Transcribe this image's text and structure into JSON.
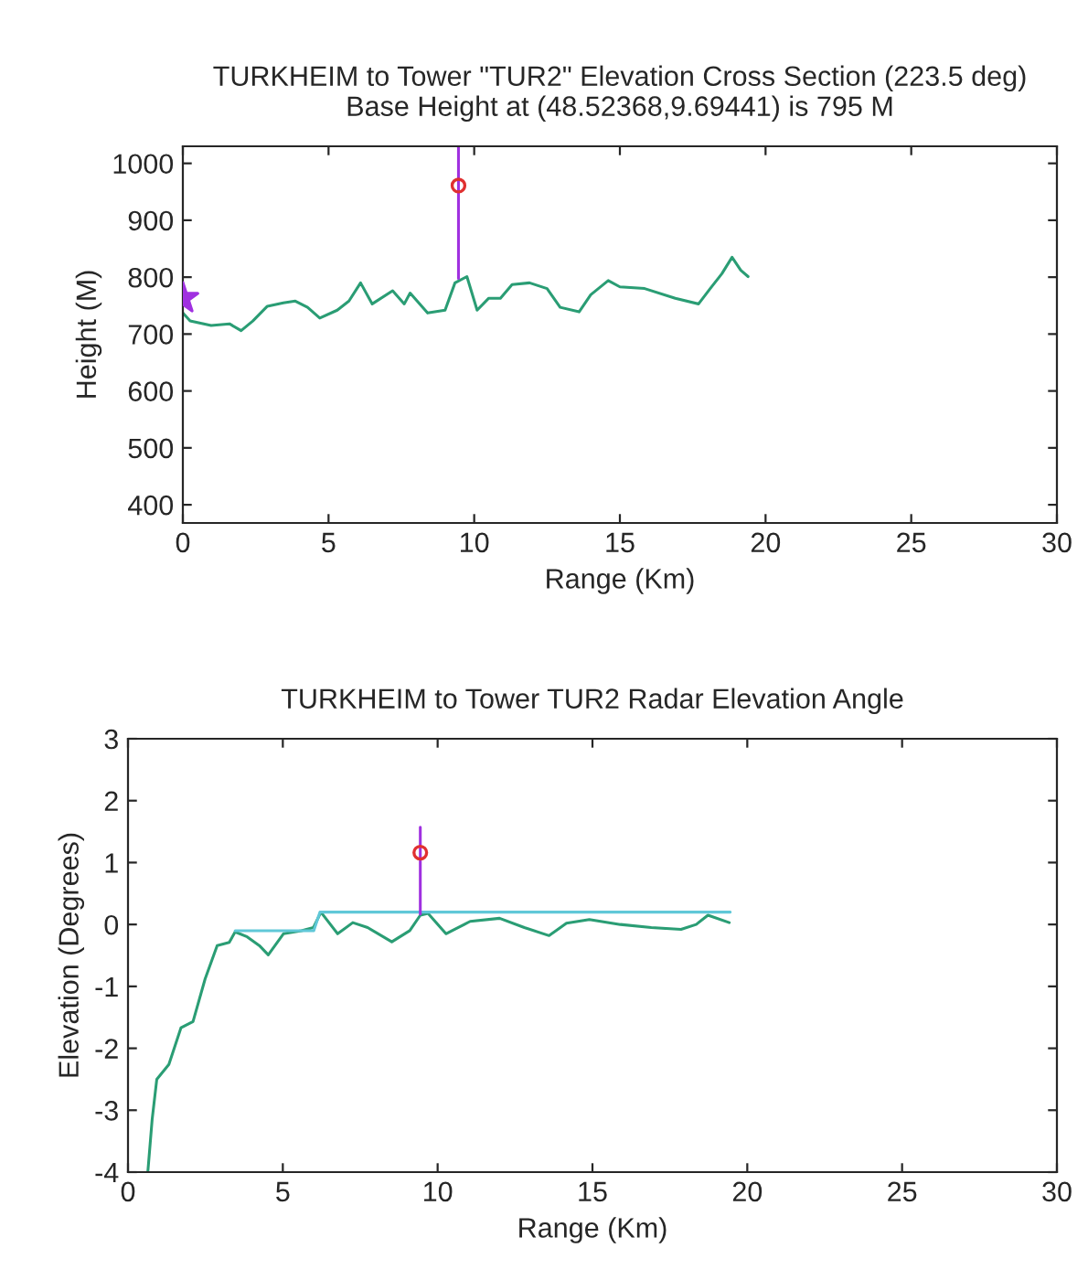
{
  "chart_data": [
    {
      "type": "line",
      "title": "TURKHEIM to Tower \"TUR2\" Elevation Cross Section (223.5 deg)",
      "subtitle": "Base Height at (48.52368,9.69441) is 795 M",
      "xlabel": "Range (Km)",
      "ylabel": "Height (M)",
      "xlim": [
        0,
        30
      ],
      "xticks": [
        0,
        5,
        10,
        15,
        20,
        25,
        30
      ],
      "ylim": [
        368,
        1030
      ],
      "yticks": [
        400,
        500,
        600,
        700,
        800,
        900,
        1000
      ],
      "grid": false,
      "legend": false,
      "series": [
        {
          "color": "#2a9d74",
          "marker": "none",
          "x": [
            0,
            0.25,
            0.97,
            1.6,
            2.0,
            2.4,
            2.9,
            3.45,
            3.86,
            4.28,
            4.7,
            5.3,
            5.7,
            6.1,
            6.5,
            7.2,
            7.6,
            7.8,
            8.4,
            9.0,
            9.34,
            9.75,
            10.1,
            10.5,
            10.9,
            11.3,
            11.9,
            12.5,
            12.95,
            13.6,
            14.0,
            14.6,
            15.0,
            15.85,
            16.9,
            17.7,
            18.1,
            18.5,
            18.85,
            19.15,
            19.4
          ],
          "values": [
            737,
            723,
            715,
            718,
            706,
            723,
            749,
            755,
            758,
            747,
            728,
            742,
            758,
            790,
            753,
            776,
            753,
            772,
            737,
            742,
            790,
            801,
            742,
            763,
            763,
            787,
            790,
            780,
            747,
            739,
            769,
            794,
            783,
            780,
            763,
            753,
            780,
            806,
            835,
            812,
            801
          ]
        },
        {
          "color": "#a030e0",
          "marker": "none",
          "x": [
            9.46,
            9.46
          ],
          "values": [
            798,
            1030
          ]
        },
        {
          "type": "scatter",
          "color": "#e03030",
          "marker": "circle",
          "x": [
            9.46
          ],
          "values": [
            961
          ]
        },
        {
          "type": "scatter",
          "color": "#a030e0",
          "marker": "star",
          "x": [
            0
          ],
          "values": [
            763
          ]
        }
      ]
    },
    {
      "type": "line",
      "title": "TURKHEIM to Tower TUR2 Radar Elevation Angle",
      "xlabel": "Range (Km)",
      "ylabel": "Elevation (Degrees)",
      "xlim": [
        0,
        30
      ],
      "xticks": [
        0,
        5,
        10,
        15,
        20,
        25,
        30
      ],
      "ylim": [
        -4,
        3
      ],
      "yticks": [
        {
          "value": -4,
          "label": "-4"
        },
        {
          "value": -3,
          "label": "-3"
        },
        {
          "value": -2,
          "label": "-2"
        },
        {
          "value": -1,
          "label": "-1"
        },
        0,
        1,
        2,
        3
      ],
      "grid": false,
      "legend": false,
      "series": [
        {
          "color": "#2a9d74",
          "marker": "none",
          "x": [
            0.64,
            0.78,
            0.93,
            1.32,
            1.71,
            2.1,
            2.49,
            2.88,
            3.27,
            3.46,
            3.85,
            4.24,
            4.53,
            5.02,
            5.6,
            5.99,
            6.23,
            6.77,
            7.26,
            7.74,
            8.52,
            9.1,
            9.44,
            9.69,
            10.27,
            11.05,
            12.0,
            12.8,
            13.6,
            14.16,
            14.9,
            15.9,
            16.9,
            17.86,
            18.35,
            18.73,
            19.42
          ],
          "values": [
            -4,
            -3.15,
            -2.5,
            -2.26,
            -1.67,
            -1.57,
            -0.88,
            -0.34,
            -0.29,
            -0.12,
            -0.2,
            -0.34,
            -0.49,
            -0.15,
            -0.1,
            -0.05,
            0.2,
            -0.15,
            0.03,
            -0.05,
            -0.28,
            -0.1,
            0.15,
            0.18,
            -0.15,
            0.05,
            0.1,
            -0.05,
            -0.18,
            0.02,
            0.08,
            0,
            -0.05,
            -0.08,
            0,
            0.15,
            0.03
          ]
        },
        {
          "color": "#60c8d8",
          "marker": "none",
          "x": [
            3.46,
            6.0,
            6.2,
            19.45
          ],
          "values": [
            -0.1,
            -0.1,
            0.2,
            0.2
          ]
        },
        {
          "color": "#a030e0",
          "marker": "none",
          "x": [
            9.44,
            9.44
          ],
          "values": [
            0.17,
            1.57
          ]
        },
        {
          "type": "scatter",
          "color": "#e03030",
          "marker": "circle",
          "x": [
            9.44
          ],
          "values": [
            1.16
          ]
        }
      ]
    }
  ]
}
